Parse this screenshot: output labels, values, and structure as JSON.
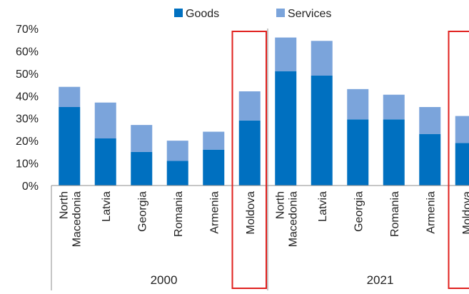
{
  "chart_data": {
    "type": "bar",
    "stacked": true,
    "title": "",
    "xlabel": "",
    "ylabel": "",
    "ylim": [
      0,
      70
    ],
    "y_ticks": [
      "0%",
      "10%",
      "20%",
      "30%",
      "40%",
      "50%",
      "60%",
      "70%"
    ],
    "legend": {
      "placement": "top-center",
      "entries": [
        "Goods",
        "Services"
      ]
    },
    "grid": false,
    "colors": {
      "Goods": "#0070c0",
      "Services": "#7ba4db",
      "highlight": "#e0201e",
      "axis": "#8c8c8c"
    },
    "groups": [
      {
        "label": "2000",
        "categories": [
          [
            "North",
            "Macedonia"
          ],
          [
            "Latvia"
          ],
          [
            "Georgia"
          ],
          [
            "Romania"
          ],
          [
            "Armenia"
          ],
          [
            "Moldova"
          ]
        ],
        "series": [
          {
            "name": "Goods",
            "values": [
              35,
              21,
              15,
              11,
              16,
              29
            ]
          },
          {
            "name": "Services",
            "values": [
              9,
              16,
              12,
              9,
              8,
              13
            ]
          }
        ],
        "highlight_category": "Moldova"
      },
      {
        "label": "2021",
        "categories": [
          [
            "North",
            "Macedonia"
          ],
          [
            "Latvia"
          ],
          [
            "Georgia"
          ],
          [
            "Romania"
          ],
          [
            "Armenia"
          ],
          [
            "Moldova"
          ]
        ],
        "series": [
          {
            "name": "Goods",
            "values": [
              51,
              49,
              29.5,
              29.5,
              23,
              19
            ]
          },
          {
            "name": "Services",
            "values": [
              15,
              15.5,
              13.5,
              11,
              12,
              12
            ]
          }
        ],
        "highlight_category": "Moldova"
      }
    ]
  }
}
